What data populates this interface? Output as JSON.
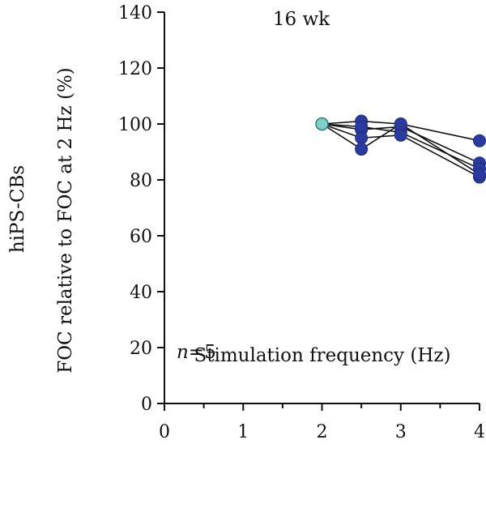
{
  "chart_data": {
    "type": "line",
    "title": "16 wk",
    "xlabel": "Stimulation frequency (Hz)",
    "ylabel": "FOC relative to FOC at 2 Hz (%)",
    "row_label": "hiPS-CBs",
    "annotation": {
      "italic": "n",
      "rest": "=5"
    },
    "xlim": [
      0,
      4
    ],
    "ylim": [
      0,
      140
    ],
    "x_ticks": [
      0,
      1,
      2,
      3,
      4
    ],
    "x_minor_ticks": [
      0.5,
      1.5,
      2.5,
      3.5
    ],
    "y_ticks": [
      0,
      20,
      40,
      60,
      80,
      100,
      120,
      140
    ],
    "grid": false,
    "x": [
      2,
      2.5,
      3,
      4
    ],
    "series": [
      {
        "values": [
          100,
          101,
          100,
          94
        ]
      },
      {
        "values": [
          100,
          98,
          99,
          86
        ]
      },
      {
        "values": [
          100,
          99,
          97,
          84
        ]
      },
      {
        "values": [
          100,
          95,
          96,
          81
        ]
      },
      {
        "values": [
          100,
          91,
          100,
          82
        ]
      }
    ],
    "colors": {
      "reference_point_fill": "#7fcfc7",
      "reference_point_stroke": "#2e7f78",
      "point_fill": "#2b3a9e",
      "point_stroke": "#1f2d80",
      "line": "#111111"
    }
  }
}
